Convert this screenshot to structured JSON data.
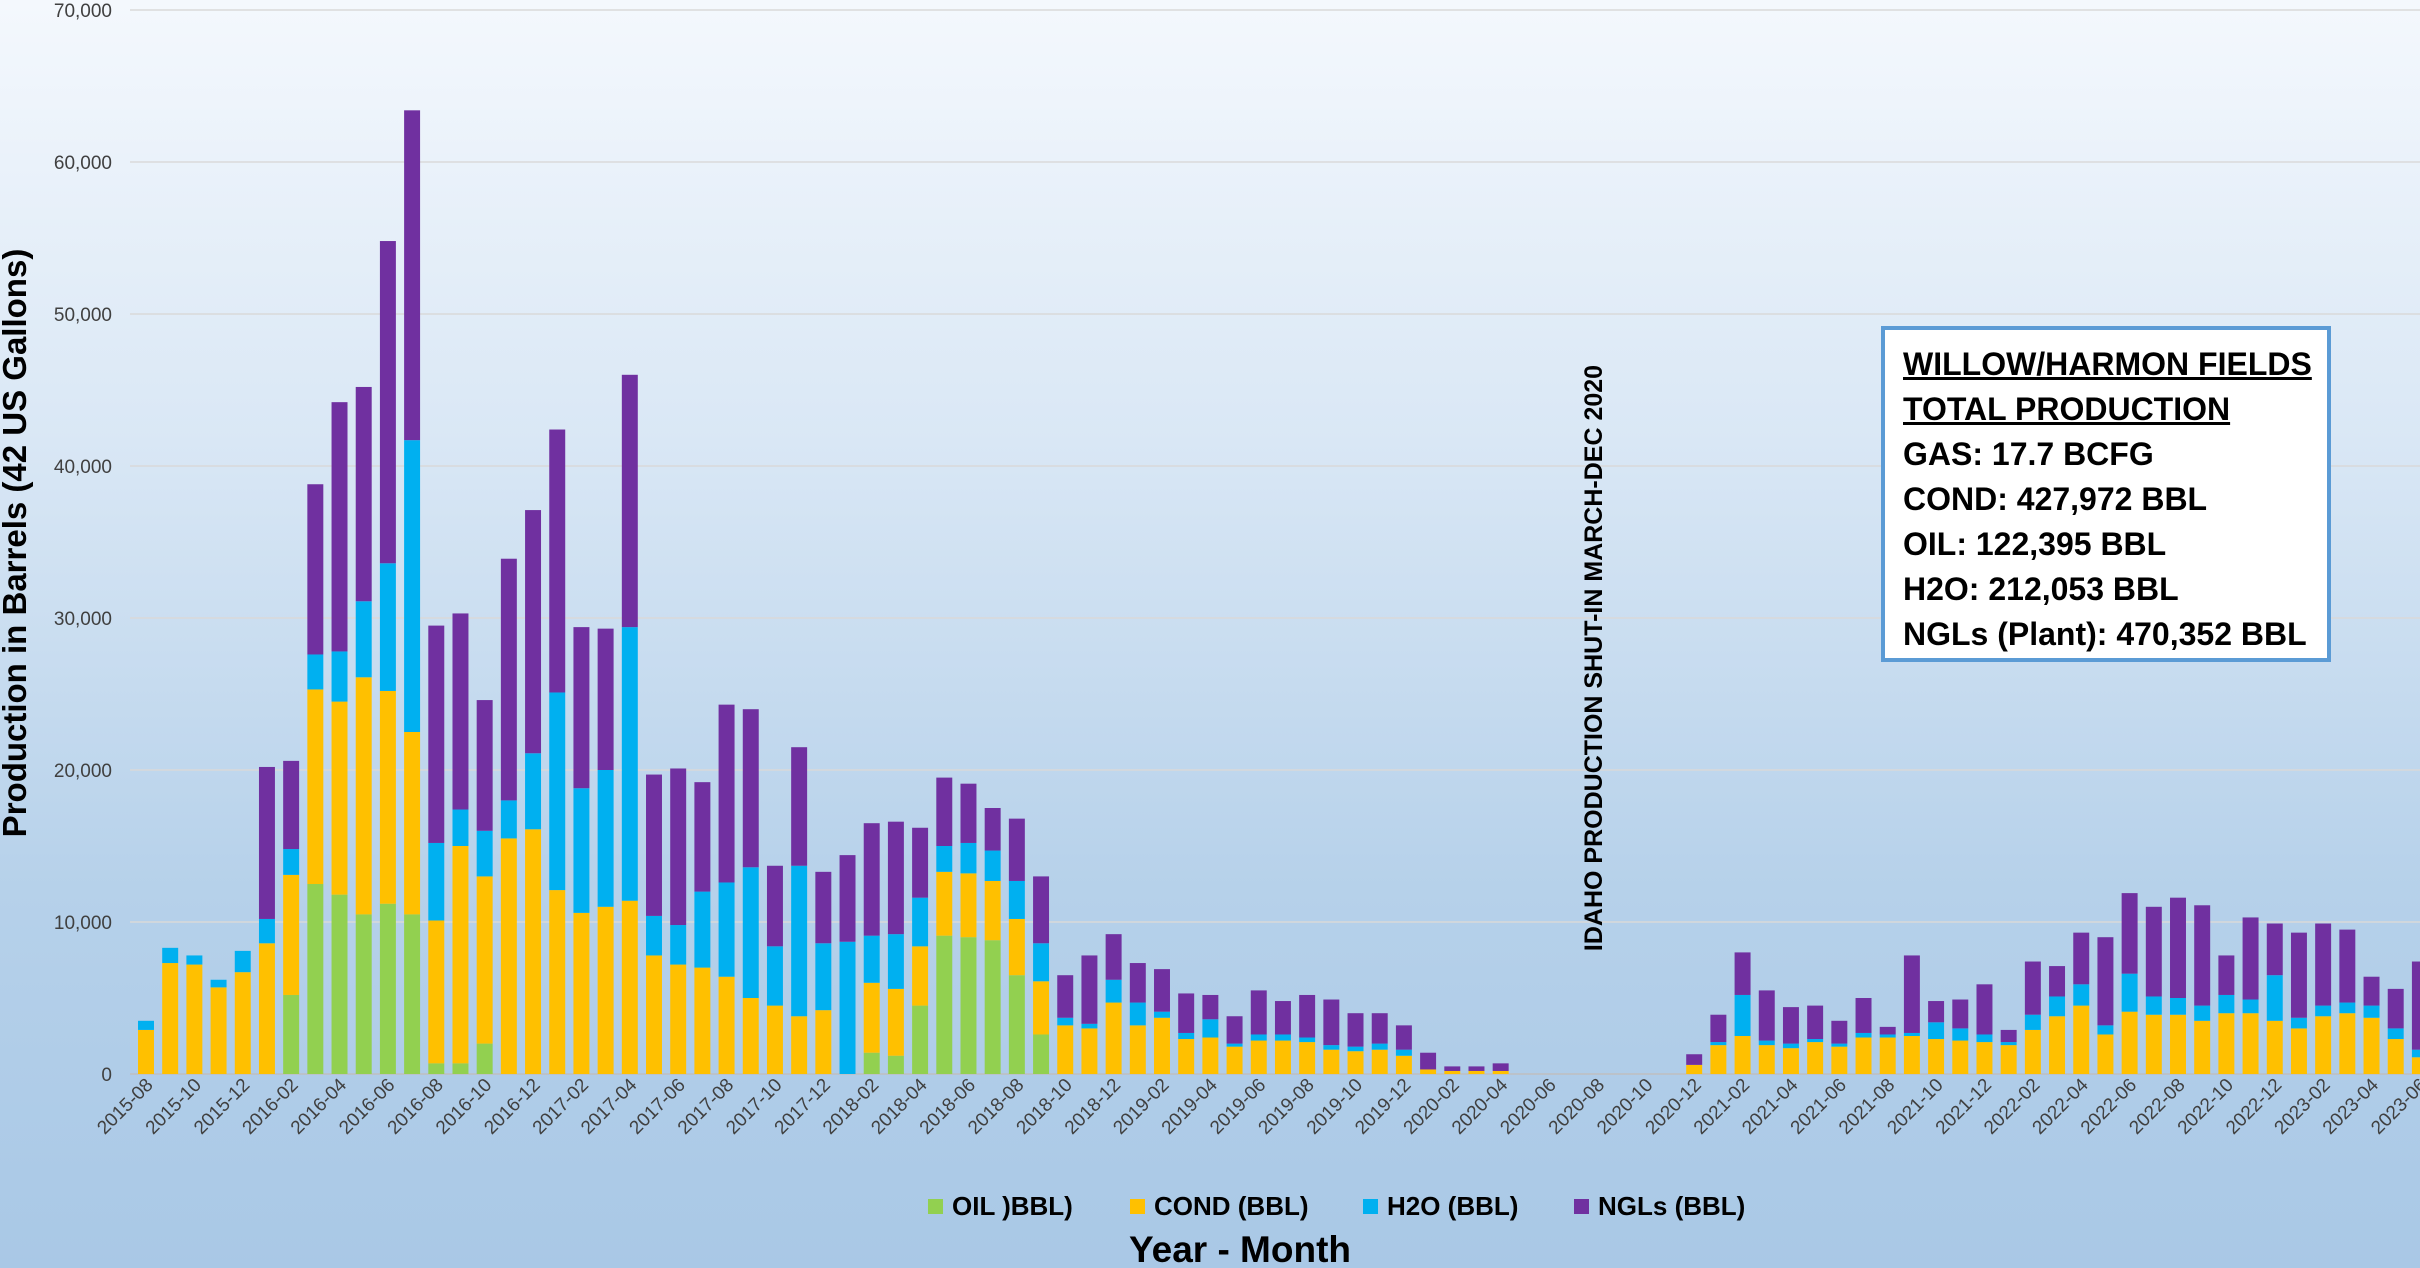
{
  "chart_data": {
    "type": "bar",
    "stacked": true,
    "title": "",
    "xlabel": "Year -  Month",
    "ylabel": "Production in Barrels (42 US Gallons)",
    "ylim": [
      0,
      70000
    ],
    "yticks": [
      "0",
      "10,000",
      "20,000",
      "30,000",
      "40,000",
      "50,000",
      "60,000",
      "70,000"
    ],
    "grid": true,
    "legend": "bottom",
    "colors": {
      "OIL": "#92d050",
      "COND": "#ffc000",
      "H2O": "#00b0f0",
      "NGL": "#7030a0"
    },
    "categories": [
      "2015-08",
      "2015-09",
      "2015-10",
      "2015-11",
      "2015-12",
      "2016-01",
      "2016-02",
      "2016-03",
      "2016-04",
      "2016-05",
      "2016-06",
      "2016-07",
      "2016-08",
      "2016-09",
      "2016-10",
      "2016-11",
      "2016-12",
      "2017-01",
      "2017-02",
      "2017-03",
      "2017-04",
      "2017-05",
      "2017-06",
      "2017-07",
      "2017-08",
      "2017-09",
      "2017-10",
      "2017-11",
      "2017-12",
      "2018-01",
      "2018-02",
      "2018-03",
      "2018-04",
      "2018-05",
      "2018-06",
      "2018-07",
      "2018-08",
      "2018-09",
      "2018-10",
      "2018-11",
      "2018-12",
      "2019-01",
      "2019-02",
      "2019-03",
      "2019-04",
      "2019-05",
      "2019-06",
      "2019-07",
      "2019-08",
      "2019-09",
      "2019-10",
      "2019-11",
      "2019-12",
      "2020-01",
      "2020-02",
      "2020-03",
      "2020-04",
      "2020-05",
      "2020-06",
      "2020-07",
      "2020-08",
      "2020-09",
      "2020-10",
      "2020-11",
      "2020-12",
      "2021-01",
      "2021-02",
      "2021-03",
      "2021-04",
      "2021-05",
      "2021-06",
      "2021-07",
      "2021-08",
      "2021-09",
      "2021-10",
      "2021-11",
      "2021-12",
      "2022-01",
      "2022-02",
      "2022-03",
      "2022-04",
      "2022-05",
      "2022-06",
      "2022-07",
      "2022-08",
      "2022-09",
      "2022-10",
      "2022-11",
      "2022-12",
      "2023-01",
      "2023-02",
      "2023-03",
      "2023-04",
      "2023-05",
      "2023-06"
    ],
    "xtick_labels": [
      "2015-08",
      "2015-10",
      "2015-12",
      "2016-02",
      "2016-04",
      "2016-06",
      "2016-08",
      "2016-10",
      "2016-12",
      "2017-02",
      "2017-04",
      "2017-06",
      "2017-08",
      "2017-10",
      "2017-12",
      "2018-02",
      "2018-04",
      "2018-06",
      "2018-08",
      "2018-10",
      "2018-12",
      "2019-02",
      "2019-04",
      "2019-06",
      "2019-08",
      "2019-10",
      "2019-12",
      "2020-02",
      "2020-04",
      "2020-06",
      "2020-08",
      "2020-10",
      "2020-12",
      "2021-02",
      "2021-04",
      "2021-06",
      "2021-08",
      "2021-10",
      "2021-12",
      "2022-02",
      "2022-04",
      "2022-06",
      "2022-08",
      "2022-10",
      "2022-12",
      "2023-02",
      "2023-04",
      "2023-06"
    ],
    "series": [
      {
        "name": "OIL )BBL)",
        "key": "OIL",
        "values": [
          0,
          0,
          0,
          0,
          0,
          0,
          5200,
          12500,
          11800,
          10500,
          11200,
          10500,
          700,
          700,
          2000,
          0,
          0,
          0,
          0,
          0,
          0,
          0,
          0,
          0,
          0,
          0,
          0,
          0,
          0,
          0,
          1400,
          1200,
          4500,
          9100,
          9000,
          8800,
          6500,
          2600,
          0,
          0,
          0,
          0,
          0,
          0,
          0,
          0,
          0,
          0,
          0,
          0,
          0,
          0,
          0,
          0,
          0,
          0,
          0,
          0,
          0,
          0,
          0,
          0,
          0,
          0,
          0,
          0,
          0,
          0,
          0,
          0,
          0,
          0,
          0,
          0,
          0,
          0,
          0,
          0,
          0,
          0,
          0,
          0,
          0,
          0,
          0,
          0,
          0,
          0,
          0,
          0,
          0,
          0,
          0,
          0,
          0
        ]
      },
      {
        "name": "COND (BBL)",
        "key": "COND",
        "values": [
          2900,
          7300,
          7200,
          5700,
          6700,
          8600,
          7900,
          12800,
          12700,
          15600,
          14000,
          12000,
          9400,
          14300,
          11000,
          15500,
          16100,
          12100,
          10600,
          11000,
          11400,
          7800,
          7200,
          7000,
          6400,
          5000,
          4500,
          3800,
          4200,
          0,
          4600,
          4400,
          3900,
          4200,
          4200,
          3900,
          3700,
          3500,
          3200,
          3000,
          4700,
          3200,
          3700,
          2300,
          2400,
          1800,
          2200,
          2200,
          2100,
          1600,
          1500,
          1600,
          1200,
          300,
          200,
          200,
          200,
          0,
          0,
          0,
          0,
          0,
          0,
          0,
          600,
          1900,
          2500,
          1900,
          1700,
          2100,
          1800,
          2400,
          2400,
          2500,
          2300,
          2200,
          2100,
          1900,
          2900,
          3800,
          4500,
          2600,
          4100,
          3900,
          3900,
          3500,
          4000,
          4000,
          3500,
          3000,
          3800,
          4000,
          3700,
          2300,
          1100
        ]
      },
      {
        "name": "H2O (BBL)",
        "key": "H2O",
        "values": [
          600,
          1000,
          600,
          500,
          1400,
          1600,
          1700,
          2300,
          3300,
          5000,
          8400,
          19200,
          5100,
          2400,
          3000,
          2500,
          5000,
          13000,
          8200,
          9000,
          18000,
          2600,
          2600,
          5000,
          6200,
          8600,
          3900,
          9900,
          4400,
          8700,
          3100,
          3600,
          3200,
          1700,
          2000,
          2000,
          2500,
          2500,
          500,
          300,
          1500,
          1500,
          400,
          400,
          1200,
          200,
          400,
          400,
          300,
          300,
          300,
          400,
          400,
          0,
          0,
          0,
          0,
          0,
          0,
          0,
          0,
          0,
          0,
          0,
          0,
          200,
          2700,
          300,
          300,
          200,
          200,
          300,
          200,
          200,
          1100,
          800,
          500,
          200,
          1000,
          1300,
          1400,
          600,
          2500,
          1200,
          1100,
          1000,
          1200,
          900,
          3000,
          700,
          700,
          700,
          800,
          700,
          500
        ]
      },
      {
        "name": "NGLs (BBL)",
        "key": "NGL",
        "values": [
          0,
          0,
          0,
          0,
          0,
          10000,
          5800,
          11200,
          16400,
          14100,
          21200,
          21700,
          14300,
          12900,
          8600,
          15900,
          16000,
          17300,
          10600,
          9300,
          16600,
          9300,
          10300,
          7200,
          11700,
          10400,
          5300,
          7800,
          4700,
          5700,
          7400,
          7400,
          4600,
          4500,
          3900,
          2800,
          4100,
          4400,
          2800,
          4500,
          3000,
          2600,
          2800,
          2600,
          1600,
          1800,
          2900,
          2200,
          2800,
          3000,
          2200,
          2000,
          1600,
          1100,
          300,
          300,
          500,
          0,
          0,
          0,
          0,
          0,
          0,
          0,
          700,
          1800,
          2800,
          3300,
          2400,
          2200,
          1500,
          2300,
          500,
          5100,
          1400,
          1900,
          3300,
          800,
          3500,
          2000,
          3400,
          5800,
          5300,
          5900,
          6600,
          6600,
          2600,
          5400,
          3400,
          5600,
          5400,
          4800,
          1900,
          2600,
          5800
        ]
      }
    ],
    "annotation": "IDAHO PRODUCTION SHUT-IN MARCH-DEC 2020"
  },
  "infobox": {
    "line1": "WILLOW/HARMON FIELDS",
    "line2": "TOTAL PRODUCTION",
    "line3": "GAS: 17.7 BCFG",
    "line4": "COND: 427,972 BBL",
    "line5": "OIL:  122,395 BBL",
    "line6": "H2O:  212,053 BBL",
    "line7": "NGLs (Plant): 470,352 BBL"
  }
}
